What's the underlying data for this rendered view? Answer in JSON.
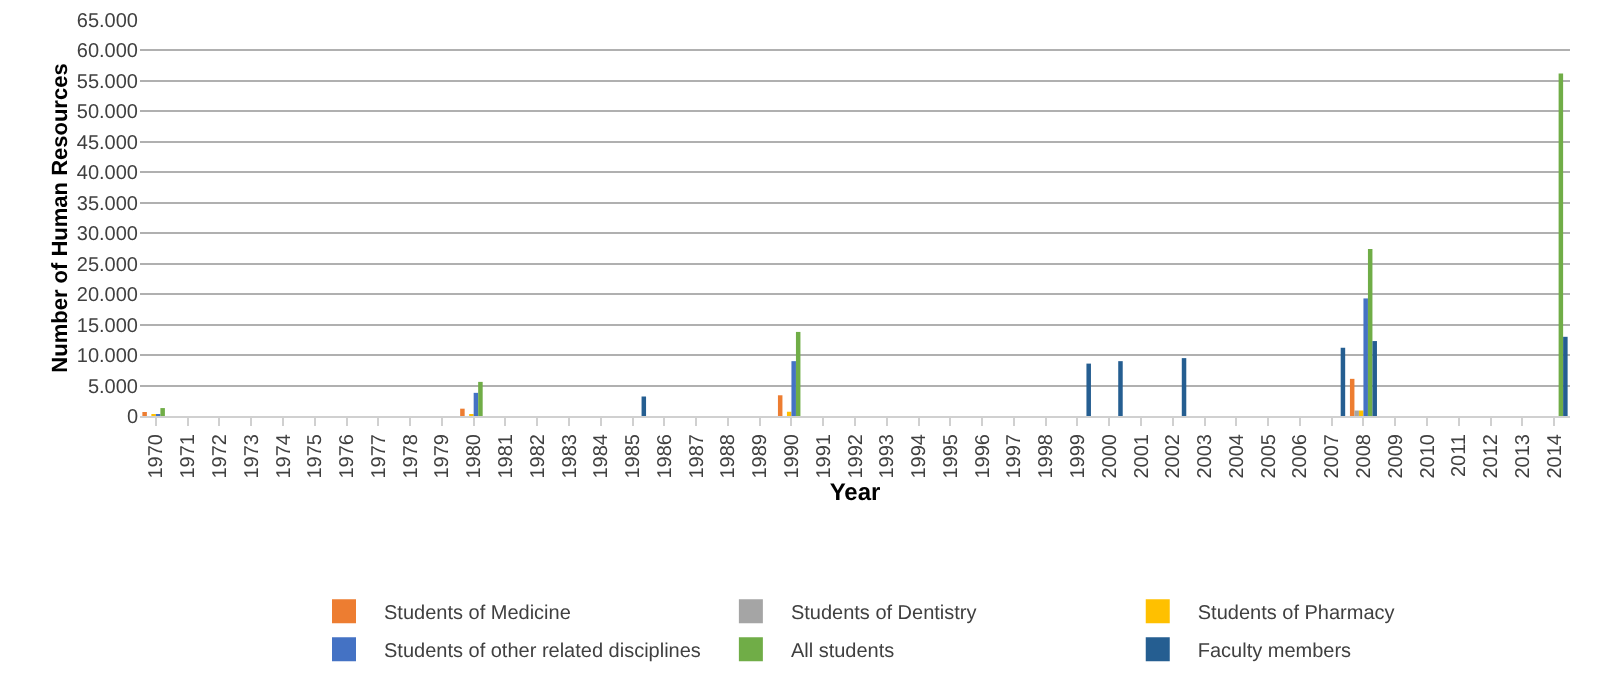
{
  "chart_data": {
    "type": "bar",
    "xlabel": "Year",
    "ylabel": "Number of Human Resources",
    "categories": [
      "1970",
      "1971",
      "1972",
      "1973",
      "1974",
      "1975",
      "1976",
      "1977",
      "1978",
      "1979",
      "1980",
      "1981",
      "1982",
      "1983",
      "1984",
      "1985",
      "1986",
      "1987",
      "1988",
      "1989",
      "1990",
      "1991",
      "1992",
      "1993",
      "1994",
      "1995",
      "1996",
      "1997",
      "1998",
      "1999",
      "2000",
      "2001",
      "2002",
      "2003",
      "2004",
      "2005",
      "2006",
      "2007",
      "2008",
      "2009",
      "2010",
      "2011",
      "2012",
      "2013",
      "2014"
    ],
    "series": [
      {
        "name": "Students of Medicine",
        "color": "#ed7d31",
        "values": [
          500,
          null,
          null,
          null,
          null,
          null,
          null,
          null,
          null,
          null,
          1200,
          null,
          null,
          null,
          null,
          null,
          null,
          null,
          null,
          null,
          3400,
          null,
          null,
          null,
          null,
          null,
          null,
          null,
          null,
          null,
          null,
          null,
          null,
          null,
          null,
          null,
          null,
          null,
          6100,
          null,
          null,
          null,
          null,
          null,
          null
        ]
      },
      {
        "name": "Students of Dentistry",
        "color": "#a5a5a5",
        "values": [
          null,
          null,
          null,
          null,
          null,
          null,
          null,
          null,
          null,
          null,
          null,
          null,
          null,
          null,
          null,
          null,
          null,
          null,
          null,
          null,
          null,
          null,
          null,
          null,
          null,
          null,
          null,
          null,
          null,
          null,
          null,
          null,
          null,
          null,
          null,
          null,
          null,
          null,
          900,
          null,
          null,
          null,
          null,
          null,
          null
        ]
      },
      {
        "name": "Students of Pharmacy",
        "color": "#ffc000",
        "values": [
          100,
          null,
          null,
          null,
          null,
          null,
          null,
          null,
          null,
          null,
          100,
          null,
          null,
          null,
          null,
          null,
          null,
          null,
          null,
          null,
          700,
          null,
          null,
          null,
          null,
          null,
          null,
          null,
          null,
          null,
          null,
          null,
          null,
          null,
          null,
          null,
          null,
          null,
          900,
          null,
          null,
          null,
          null,
          null,
          null
        ]
      },
      {
        "name": "Students of other related disciplines",
        "color": "#4472c4",
        "values": [
          300,
          null,
          null,
          null,
          null,
          null,
          null,
          null,
          null,
          null,
          3800,
          null,
          null,
          null,
          null,
          null,
          null,
          null,
          null,
          null,
          9000,
          null,
          null,
          null,
          null,
          null,
          null,
          null,
          null,
          null,
          null,
          null,
          null,
          null,
          null,
          null,
          null,
          null,
          19300,
          null,
          null,
          null,
          null,
          null,
          null
        ]
      },
      {
        "name": "All students",
        "color": "#70ad47",
        "values": [
          1300,
          null,
          null,
          null,
          null,
          null,
          null,
          null,
          null,
          null,
          5600,
          null,
          null,
          null,
          null,
          null,
          null,
          null,
          null,
          null,
          13800,
          null,
          null,
          null,
          null,
          null,
          null,
          null,
          null,
          null,
          null,
          null,
          null,
          null,
          null,
          null,
          null,
          null,
          27400,
          null,
          null,
          null,
          null,
          null,
          56200
        ]
      },
      {
        "name": "Faculty members",
        "color": "#255e91",
        "values": [
          null,
          null,
          null,
          null,
          null,
          null,
          null,
          null,
          null,
          null,
          null,
          null,
          null,
          null,
          null,
          3200,
          null,
          null,
          null,
          null,
          null,
          null,
          null,
          null,
          null,
          null,
          null,
          null,
          null,
          8600,
          9000,
          null,
          9500,
          null,
          null,
          null,
          null,
          11200,
          12300,
          null,
          null,
          null,
          null,
          null,
          13000
        ]
      }
    ],
    "ylim": [
      0,
      65000
    ],
    "yticks": [
      {
        "value": 0,
        "label": "0"
      },
      {
        "value": 5000,
        "label": "5.000"
      },
      {
        "value": 10000,
        "label": "10.000"
      },
      {
        "value": 15000,
        "label": "15.000"
      },
      {
        "value": 20000,
        "label": "20.000"
      },
      {
        "value": 25000,
        "label": "25.000"
      },
      {
        "value": 30000,
        "label": "30.000"
      },
      {
        "value": 35000,
        "label": "35.000"
      },
      {
        "value": 40000,
        "label": "40.000"
      },
      {
        "value": 45000,
        "label": "45.000"
      },
      {
        "value": 50000,
        "label": "50.000"
      },
      {
        "value": 55000,
        "label": "55.000"
      },
      {
        "value": 60000,
        "label": "60.000"
      },
      {
        "value": 65000,
        "label": "65.000"
      }
    ],
    "grid": "y",
    "legend": "bottom"
  }
}
